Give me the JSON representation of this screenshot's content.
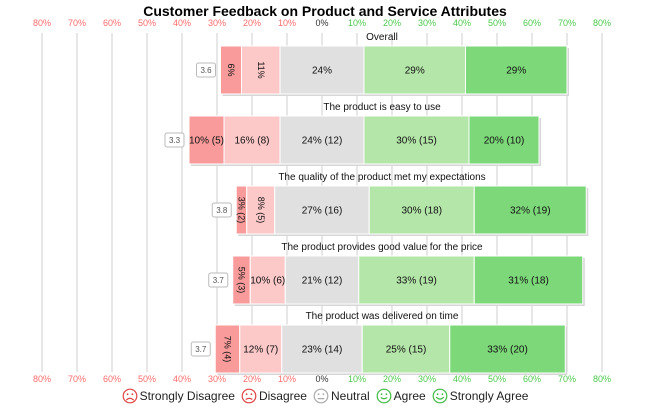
{
  "chart_data": {
    "type": "bar",
    "orientation": "horizontal-diverging",
    "title": "Customer Feedback on Product and Service Attributes",
    "axis_ticks": [
      "80%",
      "70%",
      "60%",
      "50%",
      "40%",
      "30%",
      "20%",
      "10%",
      "0%",
      "10%",
      "20%",
      "30%",
      "40%",
      "50%",
      "60%",
      "70%",
      "80%"
    ],
    "xlim": [
      -80,
      80
    ],
    "grid": true,
    "categories_legend": [
      "Strongly Disagree",
      "Disagree",
      "Neutral",
      "Agree",
      "Strongly Agree"
    ],
    "colors": {
      "strongly_disagree": "#f99b9b",
      "disagree": "#fcc8c8",
      "neutral": "#e0e0e0",
      "agree": "#b4e6a9",
      "strongly_agree": "#7dd87a",
      "negative_tick": "#ff6b6b",
      "positive_tick": "#4cc94c",
      "face_negative": "#e04444",
      "face_neutral": "#aaaaaa",
      "face_positive": "#44bb44"
    },
    "series": [
      {
        "name": "Strongly Disagree",
        "values": [
          6,
          10,
          3,
          5,
          7
        ]
      },
      {
        "name": "Disagree",
        "values": [
          11,
          16,
          8,
          10,
          12
        ]
      },
      {
        "name": "Neutral",
        "values": [
          24,
          24,
          27,
          21,
          23
        ]
      },
      {
        "name": "Agree",
        "values": [
          29,
          30,
          30,
          33,
          25
        ]
      },
      {
        "name": "Strongly Agree",
        "values": [
          29,
          20,
          32,
          31,
          33
        ]
      }
    ],
    "rows": [
      {
        "label": "Overall",
        "mean": "3.6",
        "segment_labels": [
          "6%",
          "11%",
          "24%",
          "29%",
          "29%"
        ],
        "rotated": [
          true,
          true,
          false,
          false,
          false
        ]
      },
      {
        "label": "The product is easy to use",
        "mean": "3.3",
        "segment_labels": [
          "10% (5)",
          "16% (8)",
          "24% (12)",
          "30% (15)",
          "20% (10)"
        ],
        "rotated": [
          false,
          false,
          false,
          false,
          false
        ]
      },
      {
        "label": "The quality of the product met my expectations",
        "mean": "3.8",
        "segment_labels": [
          "3% (2)",
          "8% (5)",
          "27% (16)",
          "30% (18)",
          "32% (19)"
        ],
        "rotated": [
          true,
          true,
          false,
          false,
          false
        ]
      },
      {
        "label": "The product provides good value for the price",
        "mean": "3.7",
        "segment_labels": [
          "5% (3)",
          "10% (6)",
          "21% (12)",
          "33% (19)",
          "31% (18)"
        ],
        "rotated": [
          true,
          false,
          false,
          false,
          false
        ]
      },
      {
        "label": "The product was delivered on time",
        "mean": "3.7",
        "segment_labels": [
          "7% (4)",
          "12% (7)",
          "23% (14)",
          "25% (15)",
          "33% (20)"
        ],
        "rotated": [
          true,
          false,
          false,
          false,
          false
        ]
      }
    ]
  }
}
